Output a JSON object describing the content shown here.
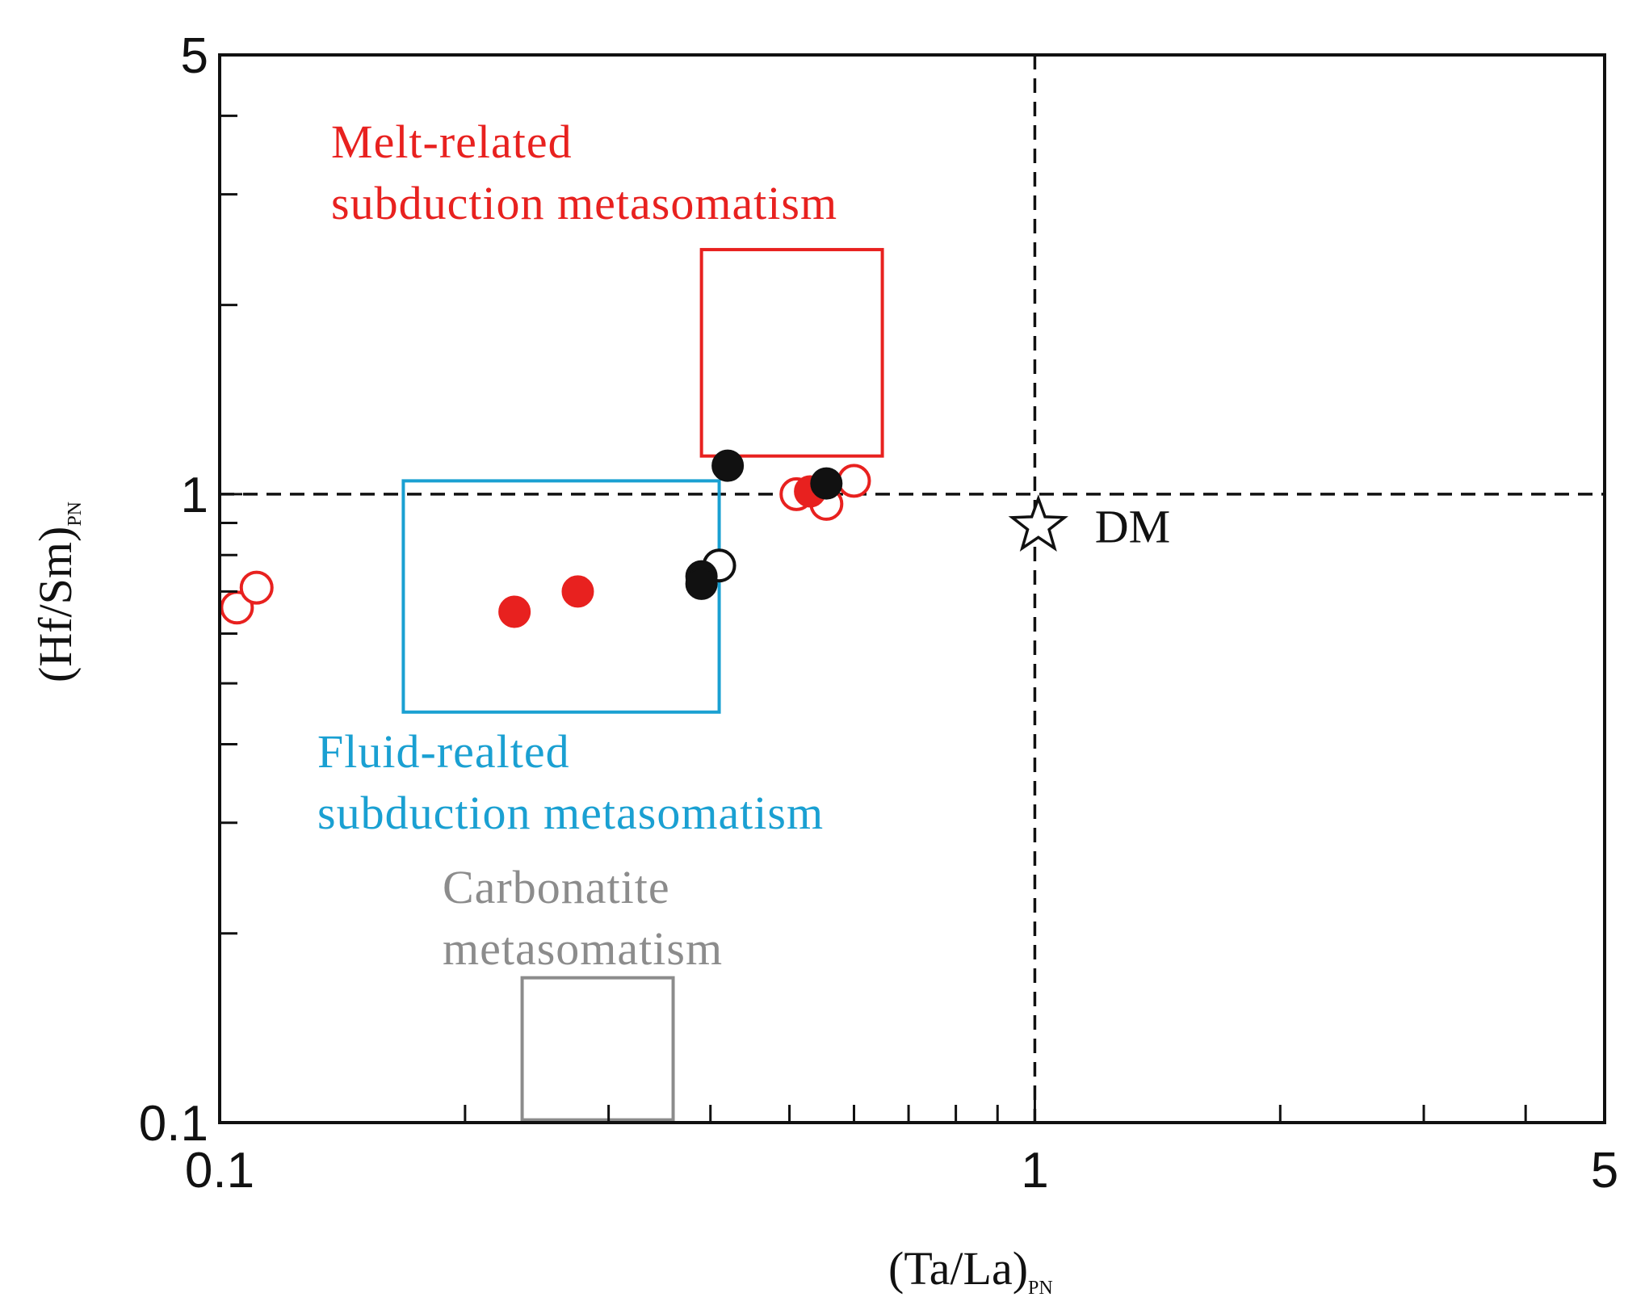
{
  "chart_data": {
    "type": "scatter",
    "title": "",
    "xlabel": "(Ta/La)",
    "xlabel_sub": "PN",
    "ylabel": "(Hf/Sm)",
    "ylabel_sub": "PN",
    "xscale": "log",
    "yscale": "log",
    "xlim": [
      0.1,
      5
    ],
    "ylim": [
      0.1,
      5
    ],
    "x_tick_labels": [
      "0.1",
      "1",
      "5"
    ],
    "y_tick_labels": [
      "0.1",
      "1",
      "5"
    ],
    "x_tick_values": [
      0.1,
      1,
      5
    ],
    "y_tick_values": [
      0.1,
      1,
      5
    ],
    "x_minor_ticks": [
      0.2,
      0.3,
      0.4,
      0.5,
      0.6,
      0.7,
      0.8,
      0.9,
      2,
      3,
      4
    ],
    "y_minor_ticks": [
      0.2,
      0.3,
      0.4,
      0.5,
      0.6,
      0.7,
      0.8,
      0.9,
      2,
      3,
      4
    ],
    "reference_lines": {
      "x": 1,
      "y": 1,
      "style": "dashed"
    },
    "colors": {
      "red": "#e8211f",
      "blue": "#1aa0d2",
      "gray": "#8c8c8c",
      "black": "#111111"
    },
    "fields": [
      {
        "name": "melt",
        "label_lines": [
          "Melt-related",
          "subduction metasomatism"
        ],
        "color": "#e8211f",
        "x_range": [
          0.39,
          0.65
        ],
        "y_range": [
          1.15,
          2.45
        ]
      },
      {
        "name": "fluid",
        "label_lines": [
          "Fluid-realted",
          "subduction metasomatism"
        ],
        "color": "#1aa0d2",
        "x_range": [
          0.168,
          0.41
        ],
        "y_range": [
          0.45,
          1.05
        ]
      },
      {
        "name": "carbonatite",
        "label_lines": [
          "Carbonatite",
          "metasomatism"
        ],
        "color": "#8c8c8c",
        "x_range": [
          0.235,
          0.36
        ],
        "y_range": [
          0.101,
          0.17
        ]
      }
    ],
    "series": [
      {
        "name": "red open circles",
        "marker": "open-circle",
        "color": "#e8211f",
        "points": [
          [
            0.105,
            0.66
          ],
          [
            0.111,
            0.71
          ],
          [
            0.51,
            1.0
          ],
          [
            0.555,
            0.965
          ],
          [
            0.6,
            1.05
          ]
        ]
      },
      {
        "name": "red filled circles",
        "marker": "filled-circle",
        "color": "#e8211f",
        "points": [
          [
            0.23,
            0.65
          ],
          [
            0.275,
            0.7
          ],
          [
            0.53,
            1.01
          ]
        ]
      },
      {
        "name": "black open circles",
        "marker": "open-circle",
        "color": "#111111",
        "points": [
          [
            0.41,
            0.77
          ]
        ]
      },
      {
        "name": "black filled circles",
        "marker": "filled-circle",
        "color": "#111111",
        "points": [
          [
            0.42,
            1.11
          ],
          [
            0.555,
            1.04
          ],
          [
            0.39,
            0.74
          ],
          [
            0.39,
            0.72
          ]
        ]
      }
    ],
    "reference_point": {
      "label": "DM",
      "marker": "star",
      "x": 1.01,
      "y": 0.89
    }
  }
}
